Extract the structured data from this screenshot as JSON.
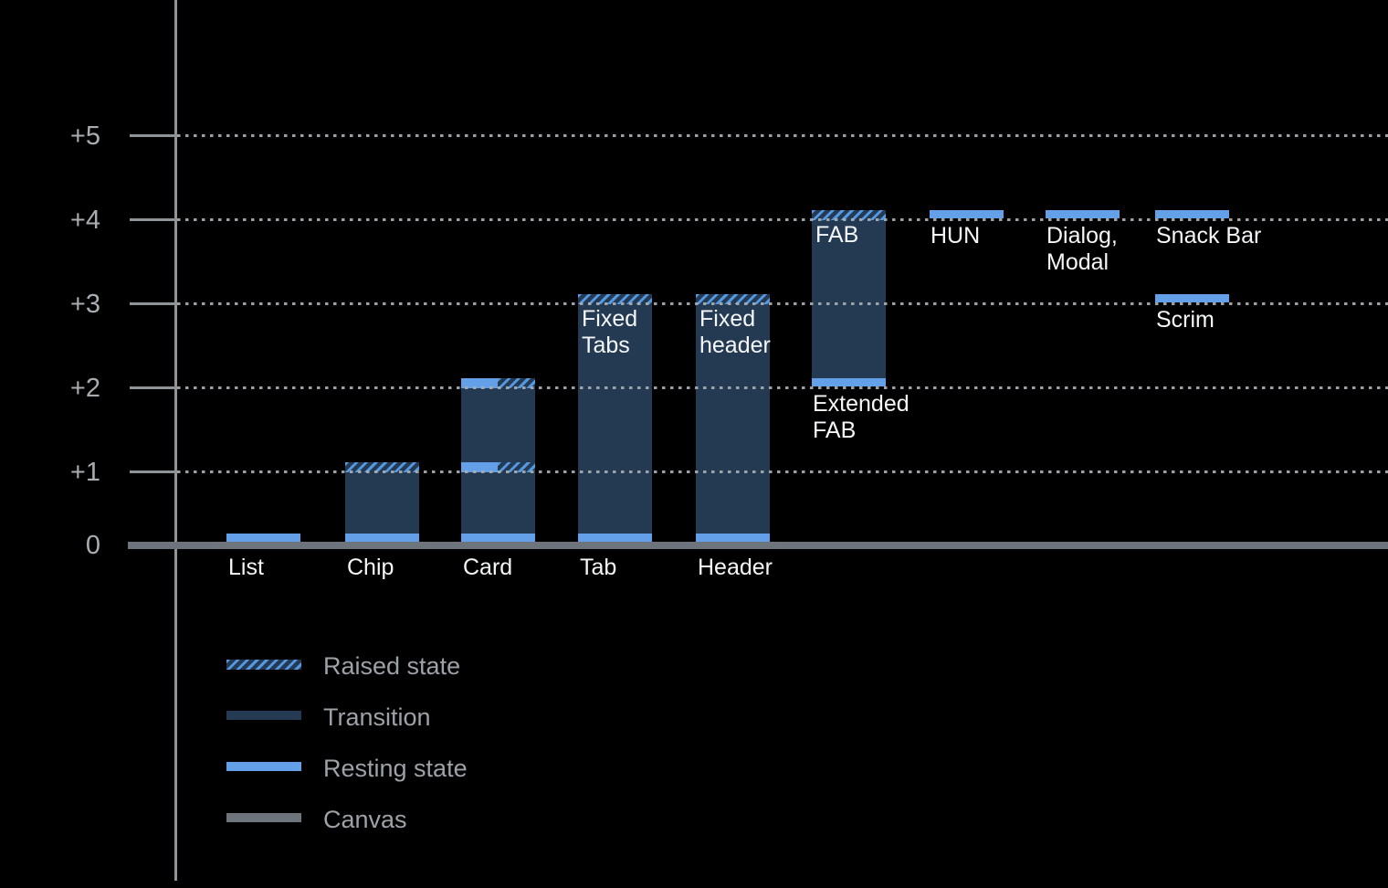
{
  "chart_data": {
    "type": "bar",
    "y_axis": {
      "ticks": [
        {
          "label": "+5",
          "value": 5
        },
        {
          "label": "+4",
          "value": 4
        },
        {
          "label": "+3",
          "value": 3
        },
        {
          "label": "+2",
          "value": 2
        },
        {
          "label": "+1",
          "value": 1
        },
        {
          "label": "0",
          "value": 0
        }
      ],
      "ylim": [
        0,
        5.5
      ],
      "grid": "dotted"
    },
    "items": [
      {
        "id": "list",
        "column": 0,
        "label_lines": [
          "List"
        ],
        "label_placement": "axis",
        "segments": [
          {
            "kind": "resting",
            "level": 0
          }
        ]
      },
      {
        "id": "chip",
        "column": 1,
        "label_lines": [
          "Chip"
        ],
        "label_placement": "axis",
        "segments": [
          {
            "kind": "transition",
            "from": 0,
            "to": 1
          },
          {
            "kind": "raised",
            "level": 1
          },
          {
            "kind": "resting",
            "level": 0
          }
        ]
      },
      {
        "id": "card",
        "column": 2,
        "label_lines": [
          "Card"
        ],
        "label_placement": "axis",
        "segments": [
          {
            "kind": "transition",
            "from": 0,
            "to": 2
          },
          {
            "kind": "resting-raised",
            "level": 2
          },
          {
            "kind": "resting-raised",
            "level": 1
          },
          {
            "kind": "resting",
            "level": 0
          }
        ]
      },
      {
        "id": "tab",
        "column": 3,
        "label_lines": [
          "Tab"
        ],
        "label_placement": "axis",
        "inner_label_lines": [
          "Fixed",
          "Tabs"
        ],
        "inner_label_level": 3,
        "segments": [
          {
            "kind": "transition",
            "from": 0,
            "to": 3
          },
          {
            "kind": "raised",
            "level": 3
          },
          {
            "kind": "resting",
            "level": 0
          }
        ]
      },
      {
        "id": "header",
        "column": 4,
        "label_lines": [
          "Header"
        ],
        "label_placement": "axis",
        "inner_label_lines": [
          "Fixed",
          "header"
        ],
        "inner_label_level": 3,
        "segments": [
          {
            "kind": "transition",
            "from": 0,
            "to": 3
          },
          {
            "kind": "raised",
            "level": 3
          },
          {
            "kind": "resting",
            "level": 0
          }
        ]
      },
      {
        "id": "extended-fab",
        "column": 5,
        "label_lines": [
          "Extended",
          "FAB"
        ],
        "label_placement": "level",
        "label_level": 2,
        "inner_label_lines": [
          "FAB"
        ],
        "inner_label_level": 4,
        "segments": [
          {
            "kind": "transition",
            "from": 2,
            "to": 4
          },
          {
            "kind": "raised",
            "level": 4
          },
          {
            "kind": "resting",
            "level": 2,
            "float": true
          }
        ]
      },
      {
        "id": "hun",
        "column": 6,
        "label_lines": [
          "HUN"
        ],
        "label_placement": "level",
        "label_level": 4,
        "segments": [
          {
            "kind": "resting",
            "level": 4,
            "float": true
          }
        ]
      },
      {
        "id": "dialog-modal",
        "column": 7,
        "label_lines": [
          "Dialog,",
          "Modal"
        ],
        "label_placement": "level",
        "label_level": 4,
        "segments": [
          {
            "kind": "resting",
            "level": 4,
            "float": true
          }
        ]
      },
      {
        "id": "snack-bar",
        "column": 8,
        "label_lines": [
          "Snack Bar"
        ],
        "label_placement": "level",
        "label_level": 4,
        "segments": [
          {
            "kind": "resting",
            "level": 4,
            "float": true
          }
        ]
      },
      {
        "id": "scrim",
        "column": 8,
        "label_lines": [
          "Scrim"
        ],
        "label_placement": "level",
        "label_level": 3,
        "segments": [
          {
            "kind": "resting",
            "level": 3,
            "float": true
          }
        ]
      }
    ],
    "legend": {
      "position": "bottom-left",
      "items": [
        {
          "swatch": "raised",
          "label": "Raised state"
        },
        {
          "swatch": "transition",
          "label": "Transition"
        },
        {
          "swatch": "resting",
          "label": "Resting state"
        },
        {
          "swatch": "canvas",
          "label": "Canvas"
        }
      ]
    },
    "colors": {
      "background": "#000000",
      "resting": "#64A0E8",
      "raised_stripe": "#5598E2",
      "transition": "#243A52",
      "canvas": "#6E747C",
      "grid_dots": "#A9AEB2",
      "axis": "#8F9498",
      "tick_label": "#A9ADB1",
      "legend_label": "#9CA2A8",
      "bar_label": "#F4F6F8"
    }
  }
}
